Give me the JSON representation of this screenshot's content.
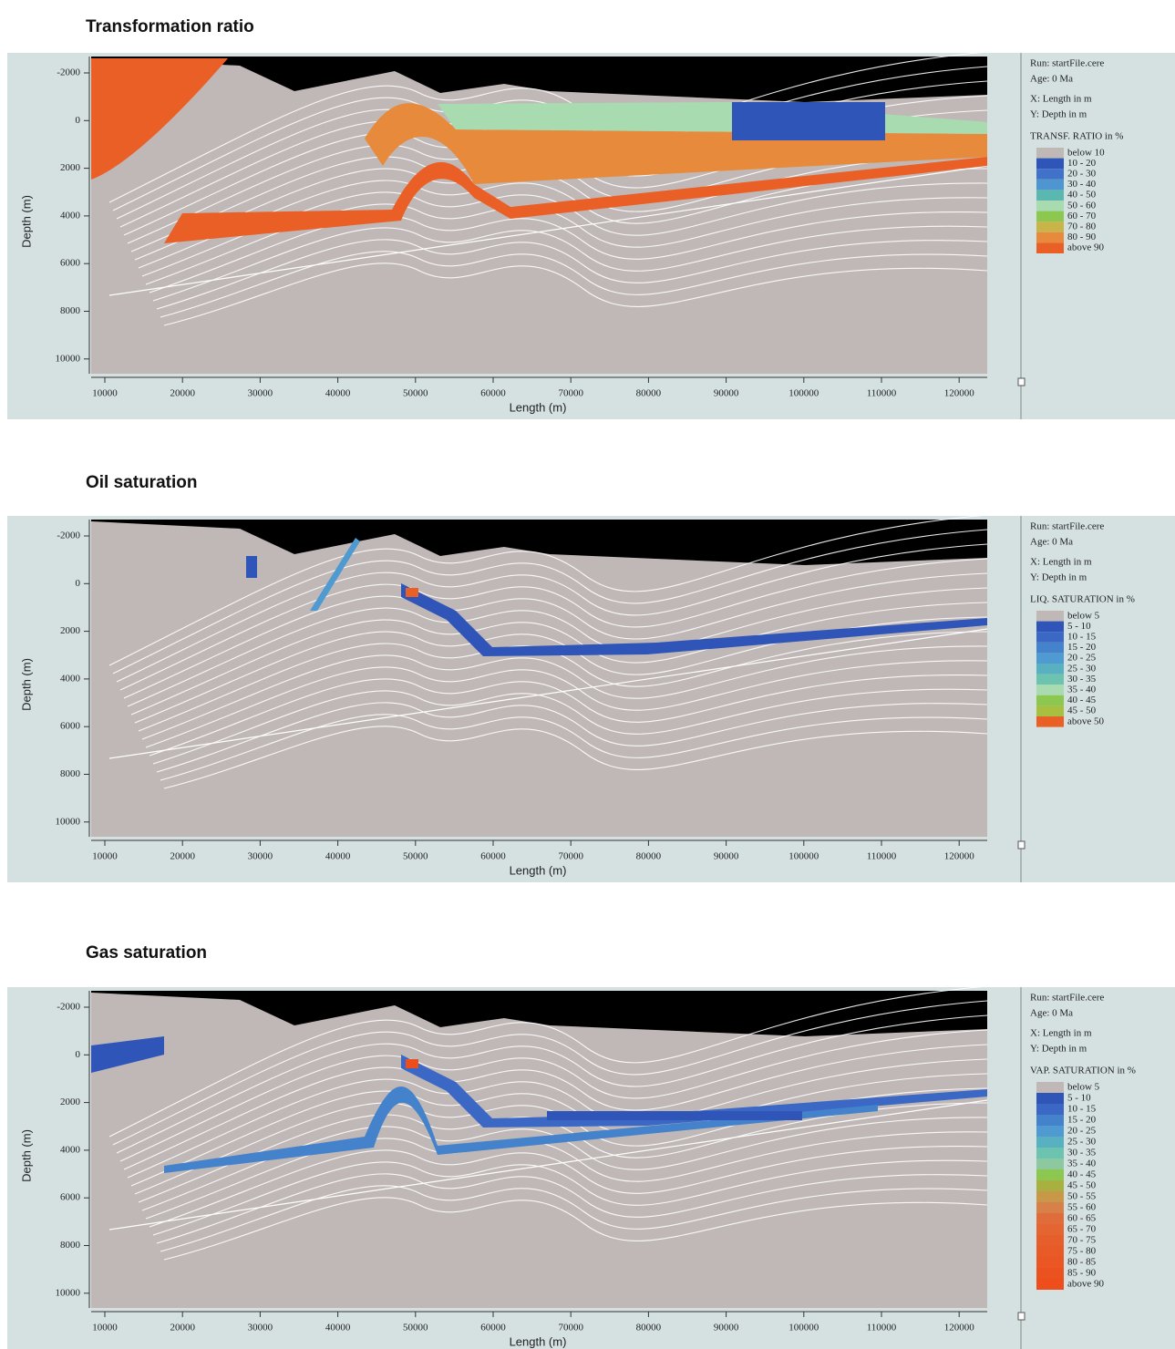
{
  "panels": [
    {
      "title": "Transformation ratio",
      "y_axis_label": "Depth (m)",
      "x_axis_label": "Length (m)",
      "y_ticks": [
        "-2000",
        "0",
        "2000",
        "4000",
        "6000",
        "8000",
        "10000"
      ],
      "x_ticks": [
        "10000",
        "20000",
        "30000",
        "40000",
        "50000",
        "60000",
        "70000",
        "80000",
        "90000",
        "100000",
        "110000",
        "120000"
      ],
      "info": [
        "Run: startFile.cere",
        "Age: 0 Ma",
        "X: Length in m",
        "Y: Depth in m"
      ],
      "legend_title": "TRANSF. RATIO in %",
      "legend": [
        {
          "label": "below 10",
          "color": "#c0b8b6"
        },
        {
          "label": "10 - 20",
          "color": "#2f55b8"
        },
        {
          "label": "20 - 30",
          "color": "#3f72c8"
        },
        {
          "label": "30 - 40",
          "color": "#4f96d0"
        },
        {
          "label": "40 - 50",
          "color": "#5ab8b0"
        },
        {
          "label": "50 - 60",
          "color": "#a8dcb0"
        },
        {
          "label": "60 - 70",
          "color": "#8cc850"
        },
        {
          "label": "70 - 80",
          "color": "#c8b448"
        },
        {
          "label": "80 - 90",
          "color": "#e88a3c"
        },
        {
          "label": "above 90",
          "color": "#ea5f26"
        }
      ]
    },
    {
      "title": "Oil saturation",
      "y_axis_label": "Depth (m)",
      "x_axis_label": "Length (m)",
      "y_ticks": [
        "-2000",
        "0",
        "2000",
        "4000",
        "6000",
        "8000",
        "10000"
      ],
      "x_ticks": [
        "10000",
        "20000",
        "30000",
        "40000",
        "50000",
        "60000",
        "70000",
        "80000",
        "90000",
        "100000",
        "110000",
        "120000"
      ],
      "info": [
        "Run: startFile.cere",
        "Age: 0 Ma",
        "X: Length in m",
        "Y: Depth in m"
      ],
      "legend_title": "LIQ. SATURATION in %",
      "legend": [
        {
          "label": "below 5",
          "color": "#c0b8b6"
        },
        {
          "label": "5 - 10",
          "color": "#2f55b8"
        },
        {
          "label": "10 - 15",
          "color": "#3a68c4"
        },
        {
          "label": "15 - 20",
          "color": "#4482cc"
        },
        {
          "label": "20 - 25",
          "color": "#4f9ad0"
        },
        {
          "label": "25 - 30",
          "color": "#58b0c0"
        },
        {
          "label": "30 - 35",
          "color": "#6cc4b0"
        },
        {
          "label": "35 - 40",
          "color": "#a8dcb0"
        },
        {
          "label": "40 - 45",
          "color": "#8cc850"
        },
        {
          "label": "45 - 50",
          "color": "#a8c040"
        },
        {
          "label": "above 50",
          "color": "#ea5f26"
        }
      ]
    },
    {
      "title": "Gas saturation",
      "y_axis_label": "Depth (m)",
      "x_axis_label": "Length (m)",
      "y_ticks": [
        "-2000",
        "0",
        "2000",
        "4000",
        "6000",
        "8000",
        "10000"
      ],
      "x_ticks": [
        "10000",
        "20000",
        "30000",
        "40000",
        "50000",
        "60000",
        "70000",
        "80000",
        "90000",
        "100000",
        "110000",
        "120000"
      ],
      "info": [
        "Run: startFile.cere",
        "Age: 0 Ma",
        "X: Length in m",
        "Y: Depth in m"
      ],
      "legend_title": "VAP. SATURATION in %",
      "legend": [
        {
          "label": "below 5",
          "color": "#c0b8b6"
        },
        {
          "label": "5 - 10",
          "color": "#2f55b8"
        },
        {
          "label": "10 - 15",
          "color": "#3a68c4"
        },
        {
          "label": "15 - 20",
          "color": "#4482cc"
        },
        {
          "label": "20 - 25",
          "color": "#4f9ad0"
        },
        {
          "label": "25 - 30",
          "color": "#58b0c0"
        },
        {
          "label": "30 - 35",
          "color": "#6cc4b0"
        },
        {
          "label": "35 - 40",
          "color": "#8cc8a0"
        },
        {
          "label": "40 - 45",
          "color": "#8cc850"
        },
        {
          "label": "45 - 50",
          "color": "#a8b040"
        },
        {
          "label": "50 - 55",
          "color": "#c89848"
        },
        {
          "label": "55 - 60",
          "color": "#d8804a"
        },
        {
          "label": "60 - 65",
          "color": "#e06c3c"
        },
        {
          "label": "65 - 70",
          "color": "#e46432"
        },
        {
          "label": "70 - 75",
          "color": "#e65e2c"
        },
        {
          "label": "75 - 80",
          "color": "#e85a28"
        },
        {
          "label": "80 - 85",
          "color": "#ea5624"
        },
        {
          "label": "85 - 90",
          "color": "#ec5220"
        },
        {
          "label": "above 90",
          "color": "#ee4e1c"
        }
      ]
    }
  ]
}
